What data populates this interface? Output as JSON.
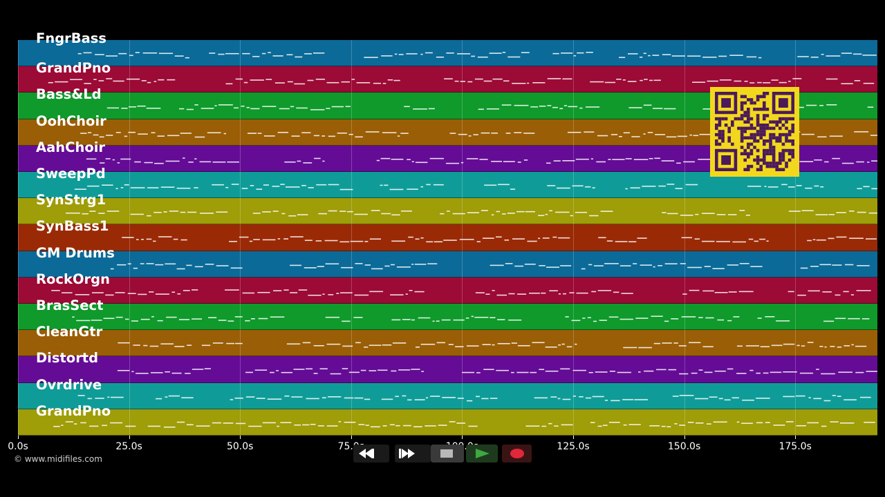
{
  "tracks": [
    {
      "label": "FngrBass",
      "color": "#0b6a98"
    },
    {
      "label": "GrandPno",
      "color": "#9c0a36"
    },
    {
      "label": "Bass&Ld",
      "color": "#0f9a2b"
    },
    {
      "label": "OohChoir",
      "color": "#9a5e06"
    },
    {
      "label": "AahChoir",
      "color": "#640c96"
    },
    {
      "label": "SweepPd",
      "color": "#0f9c98"
    },
    {
      "label": "SynStrg1",
      "color": "#9f9d08"
    },
    {
      "label": "SynBass1",
      "color": "#9a2a06"
    },
    {
      "label": "GM Drums",
      "color": "#0b6a98"
    },
    {
      "label": "RockOrgn",
      "color": "#9c0a36"
    },
    {
      "label": "BrasSect",
      "color": "#0f9a2b"
    },
    {
      "label": "CleanGtr",
      "color": "#9a5e06"
    },
    {
      "label": "Distortd",
      "color": "#640c96"
    },
    {
      "label": "Ovrdrive",
      "color": "#0f9c98"
    },
    {
      "label": "GrandPno",
      "color": "#9f9d08"
    }
  ],
  "timeline": {
    "ticks": [
      "0.0s",
      "25.0s",
      "50.0s",
      "75.0s",
      "100.0s",
      "125.0s",
      "150.0s",
      "175.0s"
    ],
    "tick_seconds": [
      0,
      25,
      50,
      75,
      100,
      125,
      150,
      175
    ],
    "duration_seconds": 193.5
  },
  "footer": {
    "copyright": "© www.midifiles.com"
  },
  "transport": {
    "rewind_icon": "rewind-icon",
    "fast_forward_icon": "fast-forward-icon",
    "stop_icon": "stop-icon",
    "play_icon": "play-icon",
    "record_icon": "record-icon",
    "play_color": "#3fa83f",
    "record_color": "#e0283a"
  },
  "qr_code": {
    "color": "#f2d81d",
    "dark": "#4a1a5a"
  }
}
